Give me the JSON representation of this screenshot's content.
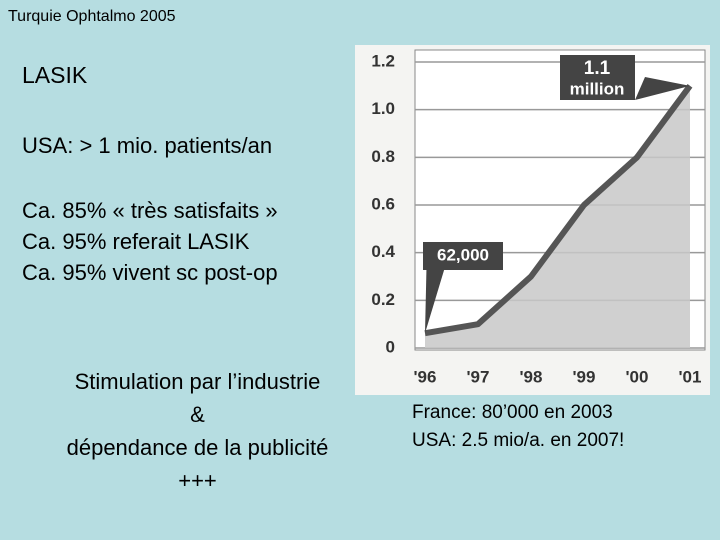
{
  "header": "Turquie Ophtalmo 2005",
  "title": "LASIK",
  "lines": [
    "USA: > 1 mio. patients/an",
    "Ca. 85% « très satisfaits »",
    "Ca. 95% referait LASIK",
    "Ca. 95% vivent sc post-op"
  ],
  "stimulation": {
    "lines": [
      "Stimulation par l’industrie",
      "&",
      "dépendance de la publicité",
      "+++"
    ]
  },
  "notes": [
    "France: 80’000 en 2003",
    "USA: 2.5 mio/a. en 2007!"
  ],
  "chart_data": {
    "type": "area",
    "categories": [
      "'96",
      "'97",
      "'98",
      "'99",
      "'00",
      "'01"
    ],
    "values": [
      0.062,
      0.1,
      0.3,
      0.6,
      0.8,
      1.1
    ],
    "ylim": [
      0,
      1.2
    ],
    "yticks": [
      0,
      0.2,
      0.4,
      0.6,
      0.8,
      {
        "value": 1,
        "label": "1.0"
      },
      1.2
    ],
    "grid": true,
    "color": "#555555",
    "annotations": [
      {
        "lines": [
          "1.1",
          "million"
        ]
      },
      {
        "lines": [
          "62,000"
        ]
      }
    ]
  }
}
